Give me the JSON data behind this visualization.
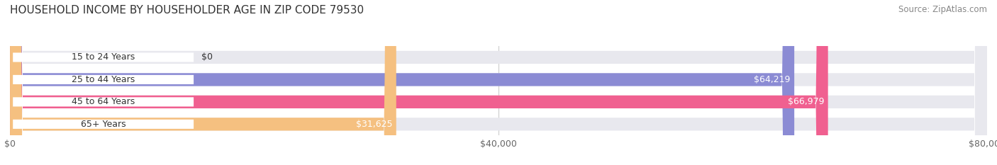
{
  "title": "HOUSEHOLD INCOME BY HOUSEHOLDER AGE IN ZIP CODE 79530",
  "source": "Source: ZipAtlas.com",
  "categories": [
    "15 to 24 Years",
    "25 to 44 Years",
    "45 to 64 Years",
    "65+ Years"
  ],
  "values": [
    0,
    64219,
    66979,
    31625
  ],
  "bar_colors": [
    "#5ecfcc",
    "#8b8bd4",
    "#f06090",
    "#f5c080"
  ],
  "bar_bg_color": "#e8e8ee",
  "xlim": [
    0,
    80000
  ],
  "xticks": [
    0,
    40000,
    80000
  ],
  "xtick_labels": [
    "$0",
    "$40,000",
    "$80,000"
  ],
  "figsize": [
    14.06,
    2.33
  ],
  "dpi": 100,
  "background_color": "#ffffff",
  "bar_height": 0.58,
  "title_fontsize": 11,
  "label_fontsize": 9,
  "tick_fontsize": 9,
  "source_fontsize": 8.5
}
